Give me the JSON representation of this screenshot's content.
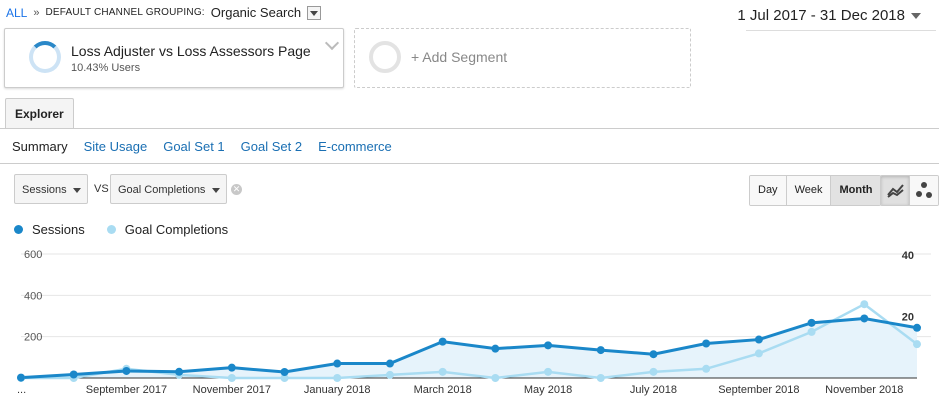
{
  "breadcrumb": {
    "all": "ALL",
    "separator": "»",
    "grouping": "DEFAULT CHANNEL GROUPING:",
    "value": "Organic Search"
  },
  "date_range": "1 Jul 2017 - 31 Dec 2018",
  "segments": {
    "active": {
      "name": "Loss Adjuster vs Loss Assessors Page",
      "share": "10.43% Users"
    },
    "add": "+ Add Segment"
  },
  "tabs": {
    "explorer": "Explorer"
  },
  "subtabs": [
    "Summary",
    "Site Usage",
    "Goal Set 1",
    "Goal Set 2",
    "E-commerce"
  ],
  "metrics": {
    "primary": "Sessions",
    "vs": "VS",
    "secondary": "Goal Completions"
  },
  "period_buttons": [
    "Day",
    "Week",
    "Month"
  ],
  "period_selected": "Month",
  "colors": {
    "sessions": "#1a87c9",
    "goals": "#a9dcf2",
    "area": "#e6f3fb"
  },
  "legend": [
    {
      "label": "Sessions",
      "color": "#1a87c9"
    },
    {
      "label": "Goal Completions",
      "color": "#a9dcf2"
    }
  ],
  "chart_data": {
    "type": "line",
    "x": [
      "Jul 2017",
      "Aug 2017",
      "Sep 2017",
      "Oct 2017",
      "Nov 2017",
      "Dec 2017",
      "Jan 2018",
      "Feb 2018",
      "Mar 2018",
      "Apr 2018",
      "May 2018",
      "Jun 2018",
      "Jul 2018",
      "Aug 2018",
      "Sep 2018",
      "Oct 2018",
      "Nov 2018",
      "Dec 2018"
    ],
    "x_tick_labels": [
      {
        "label": "...",
        "index": 0
      },
      {
        "label": "September 2017",
        "index": 2
      },
      {
        "label": "November 2017",
        "index": 4
      },
      {
        "label": "January 2018",
        "index": 6
      },
      {
        "label": "March 2018",
        "index": 8
      },
      {
        "label": "May 2018",
        "index": 10
      },
      {
        "label": "July 2018",
        "index": 12
      },
      {
        "label": "September 2018",
        "index": 14
      },
      {
        "label": "November 2018",
        "index": 16
      }
    ],
    "series": [
      {
        "name": "Sessions",
        "axis": "left",
        "values": [
          2,
          17,
          34,
          30,
          50,
          29,
          70,
          70,
          176,
          142,
          158,
          135,
          115,
          167,
          186,
          267,
          288,
          243
        ]
      },
      {
        "name": "Goal Completions",
        "axis": "right",
        "values": [
          0,
          0,
          3,
          1,
          0,
          0,
          0,
          1,
          2,
          0,
          2,
          0,
          2,
          3,
          8,
          15,
          24,
          11
        ]
      }
    ],
    "y_left": {
      "ticks": [
        200,
        400,
        600
      ],
      "ylim": [
        0,
        600
      ]
    },
    "y_right": {
      "ticks": [
        20,
        40
      ],
      "ylim": [
        0,
        40
      ]
    },
    "grid": true
  }
}
